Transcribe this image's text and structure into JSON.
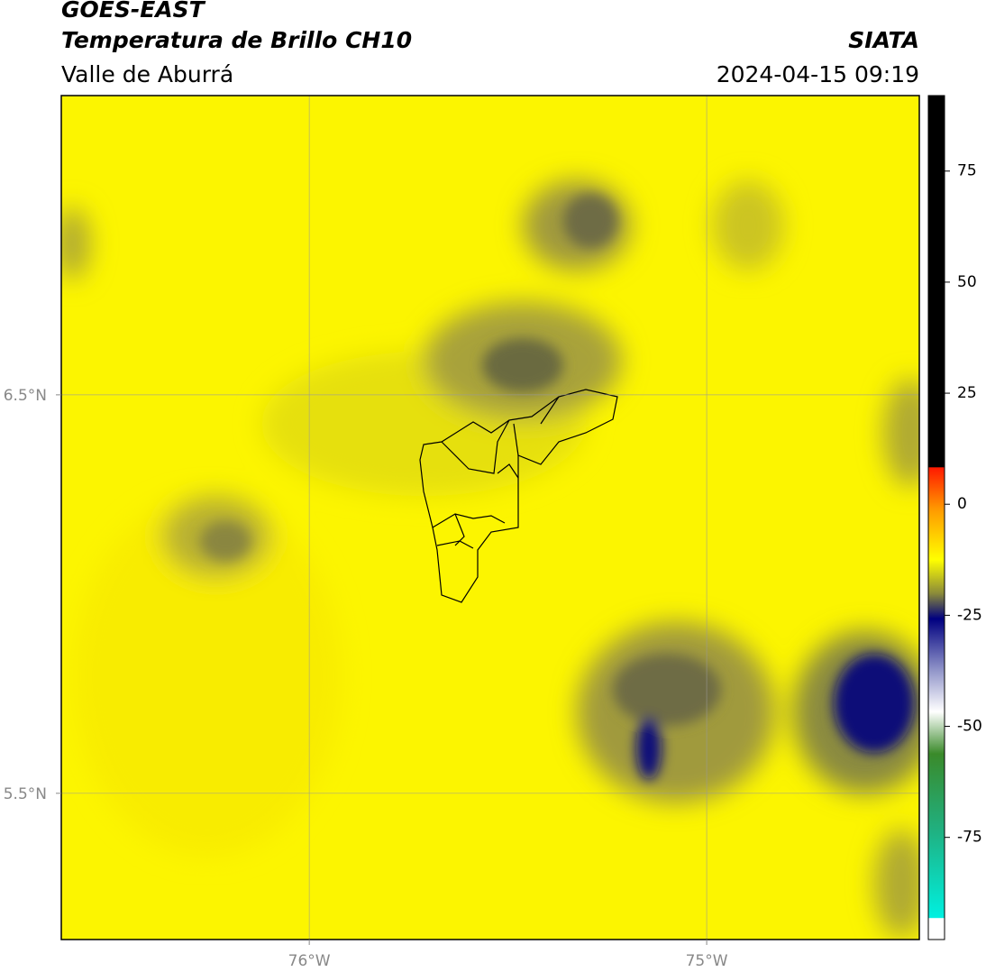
{
  "header": {
    "title": "GOES-EAST",
    "subtitle": "Temperatura de Brillo CH10",
    "region": "Valle de Aburrá",
    "source": "SIATA",
    "datetime": "2024-04-15 09:19"
  },
  "map": {
    "xlim": [
      -76.624,
      -74.465
    ],
    "ylim": [
      5.133,
      7.251
    ],
    "xticks": [
      {
        "value": -76,
        "label": "76°W"
      },
      {
        "value": -75,
        "label": "75°W"
      }
    ],
    "yticks": [
      {
        "value": 5.5,
        "label": "5.5°N"
      },
      {
        "value": 6.5,
        "label": "6.5°N"
      }
    ],
    "grid": true
  },
  "colorbar": {
    "lim": [
      -98,
      92
    ],
    "ticks": [
      -75,
      -50,
      -25,
      0,
      25,
      50,
      75
    ]
  }
}
